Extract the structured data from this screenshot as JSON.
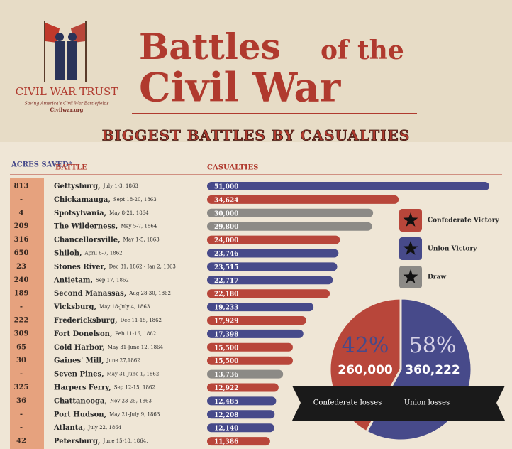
{
  "org": {
    "name": "CIVIL WAR TRUST",
    "tagline": "Saving America's Civil War Battlefields",
    "site": "Civilwar.org"
  },
  "title_lines": [
    "Battles",
    "of the",
    "Civil War"
  ],
  "subtitle": "BIGGEST BATTLES BY CASUALTIES",
  "chart_data": [
    {
      "type": "hbar",
      "headers": {
        "acres": "ACRES SAVED*",
        "battle": "BATTLE",
        "value": "CASUALTIES"
      },
      "acres": [
        "813",
        "-",
        "4",
        "209",
        "316",
        "650",
        "23",
        "240",
        "189",
        "-",
        "222",
        "309",
        "65",
        "30",
        "-",
        "325",
        "36",
        "-",
        "-",
        "42"
      ],
      "categories": [
        "Gettysburg,",
        "Chickamauga,",
        "Spotsylvania,",
        "The Wilderness,",
        "Chancellorsville,",
        "Shiloh,",
        "Stones River,",
        "Antietam,",
        "Second Manassas,",
        "Vicksburg,",
        "Fredericksburg,",
        "Fort Donelson,",
        "Cold Harbor,",
        "Gaines' Mill,",
        "Seven Pines,",
        "Harpers Ferry,",
        "Chattanooga,",
        "Port Hudson,",
        "Atlanta,",
        "Petersburg,"
      ],
      "dates": [
        "July 1-3, 1863",
        "Sept 18-20, 1863",
        "May 8-21, 1864",
        "May 5-7, 1864",
        "May 1-5, 1863",
        "April 6-7, 1862",
        "Dec 31, 1862 - Jan 2, 1863",
        "Sep 17, 1862",
        "Aug 28-30, 1862",
        "May 18-July 4, 1863",
        "Dec 11-15, 1862",
        "Feb 11-16, 1862",
        "May 31-June 12, 1864",
        "June 27,1862",
        "May 31-June 1, 1862",
        "Sep 12-15, 1862",
        "Nov 23-25, 1863",
        "May 21-July 9, 1863",
        "July 22, 1864",
        "June 15-18, 1864,"
      ],
      "xlim": [
        0,
        51000
      ],
      "series": [
        {
          "name": "Confederate Victory",
          "color": "#b8463a",
          "values": [
            null,
            34624,
            null,
            null,
            24000,
            null,
            null,
            null,
            22180,
            null,
            17929,
            null,
            15500,
            15500,
            null,
            12922,
            null,
            null,
            null,
            11386
          ],
          "value_labels": [
            null,
            "34,624",
            null,
            null,
            "24,000",
            null,
            null,
            null,
            "22,180",
            null,
            "17,929",
            null,
            "15,500",
            "15,500",
            null,
            "12,922",
            null,
            null,
            null,
            "11,386"
          ]
        },
        {
          "name": "Union Victory",
          "color": "#474a8a",
          "values": [
            51000,
            null,
            null,
            null,
            null,
            23746,
            23515,
            22717,
            null,
            19233,
            null,
            17398,
            null,
            null,
            null,
            null,
            12485,
            12208,
            12140,
            null
          ],
          "value_labels": [
            "51,000",
            null,
            null,
            null,
            null,
            "23,746",
            "23,515",
            "22,717",
            null,
            "19,233",
            null,
            "17,398",
            null,
            null,
            null,
            null,
            "12,485",
            "12,208",
            "12,140",
            null
          ]
        },
        {
          "name": "Draw",
          "color": "#8c8a86",
          "values": [
            null,
            null,
            30000,
            29800,
            null,
            null,
            null,
            null,
            null,
            null,
            null,
            null,
            null,
            null,
            13736,
            null,
            null,
            null,
            null,
            null
          ],
          "value_labels": [
            null,
            null,
            "30,000",
            "29,800",
            null,
            null,
            null,
            null,
            null,
            null,
            null,
            null,
            null,
            null,
            "13,736",
            null,
            null,
            null,
            null,
            null
          ]
        }
      ]
    },
    {
      "type": "pie",
      "categories": [
        "Confederate losses",
        "Union losses"
      ],
      "values": [
        42,
        58
      ],
      "value_labels": [
        "42%",
        "58%"
      ],
      "totals": [
        "260,000",
        "360,222"
      ],
      "colors": [
        "#b8463a",
        "#474a8a"
      ]
    }
  ]
}
